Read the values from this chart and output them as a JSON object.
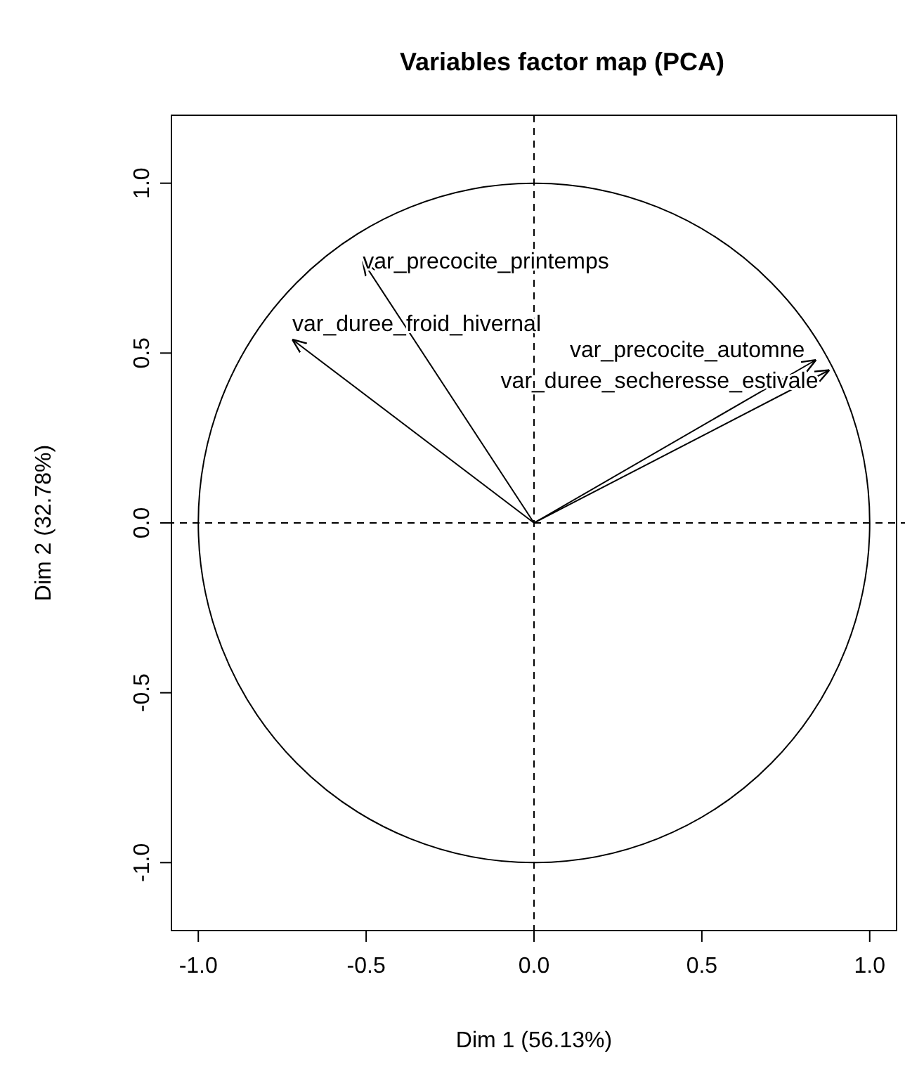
{
  "chart_data": {
    "type": "line",
    "title": "Variables factor map (PCA)",
    "xlabel": "Dim 1 (56.13%)",
    "ylabel": "Dim 2 (32.78%)",
    "xlim": [
      -1.08,
      1.08
    ],
    "ylim": [
      -1.2,
      1.2
    ],
    "xticks": [
      {
        "value": -1,
        "label": "-1.0"
      },
      {
        "value": -0.5,
        "label": "-0.5"
      },
      {
        "value": 0,
        "label": "0.0"
      },
      {
        "value": 0.5,
        "label": "0.5"
      },
      {
        "value": 1,
        "label": "1.0"
      }
    ],
    "yticks": [
      {
        "value": -1,
        "label": "-1.0"
      },
      {
        "value": -0.5,
        "label": "-0.5"
      },
      {
        "value": 0,
        "label": "0.0"
      },
      {
        "value": 0.5,
        "label": "0.5"
      },
      {
        "value": 1,
        "label": "1.0"
      }
    ],
    "marker": "none",
    "line_style": "solid",
    "ref_lines": [
      {
        "axis": "x",
        "value": 0,
        "line_style": "dashed",
        "color": "#000000"
      },
      {
        "axis": "y",
        "value": 0,
        "line_style": "dashed",
        "color": "#000000"
      }
    ],
    "series": [
      {
        "name": "var_precocite_printemps",
        "color": "#000000",
        "x": [
          0,
          -0.51
        ],
        "values": [
          0,
          0.77
        ]
      },
      {
        "name": "var_duree_froid_hivernal",
        "color": "#000000",
        "x": [
          0,
          -0.72
        ],
        "values": [
          0,
          0.54
        ]
      },
      {
        "name": "var_precocite_automne",
        "color": "#000000",
        "x": [
          0,
          0.84
        ],
        "values": [
          0,
          0.48
        ]
      },
      {
        "name": "var_duree_secheresse_estivale",
        "color": "#000000",
        "x": [
          0,
          0.88
        ],
        "values": [
          0,
          0.45
        ]
      }
    ]
  }
}
